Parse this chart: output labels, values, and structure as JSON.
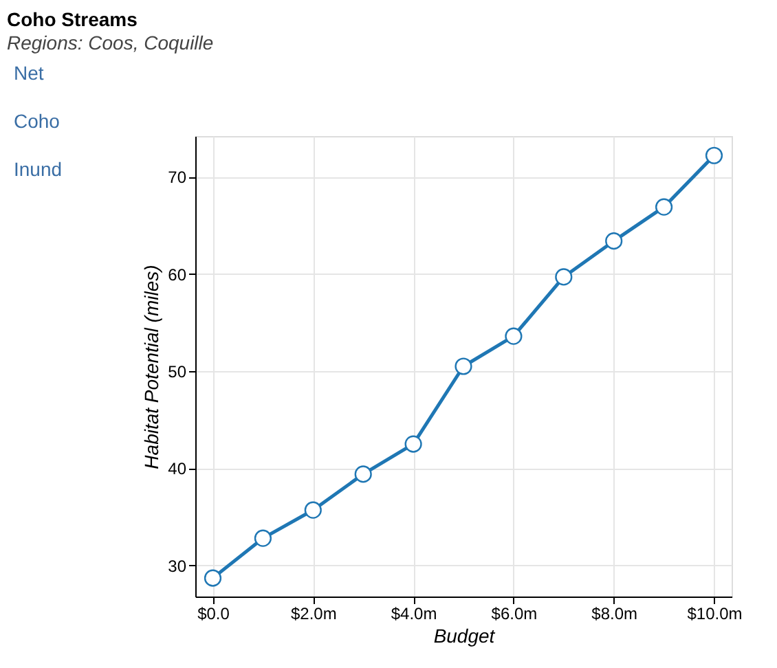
{
  "chart_data": {
    "type": "line",
    "title": "Coho Streams",
    "subtitle": "Regions: Coos, Coquille",
    "xlabel": "Budget",
    "ylabel": "Habitat Potential (miles)",
    "annotations": [
      "Net",
      "Coho",
      "Inund"
    ],
    "x": [
      0,
      1,
      2,
      3,
      4,
      5,
      6,
      7,
      8,
      9,
      10
    ],
    "series": [
      {
        "color": "#1f77b4",
        "values": [
          28.7,
          32.8,
          35.7,
          39.4,
          42.5,
          50.5,
          53.6,
          59.7,
          63.4,
          66.9,
          72.2
        ]
      }
    ],
    "xlim": [
      -0.35,
      10.35
    ],
    "ylim": [
      26.8,
      74.2
    ],
    "xticks": [
      {
        "value": 0,
        "label": "$0.0"
      },
      {
        "value": 2,
        "label": "$2.0m"
      },
      {
        "value": 4,
        "label": "$4.0m"
      },
      {
        "value": 6,
        "label": "$6.0m"
      },
      {
        "value": 8,
        "label": "$8.0m"
      },
      {
        "value": 10,
        "label": "$10.0m"
      }
    ],
    "yticks": [
      30,
      40,
      50,
      60,
      70
    ],
    "grid": true,
    "marker": "circle",
    "line_style": "solid"
  }
}
